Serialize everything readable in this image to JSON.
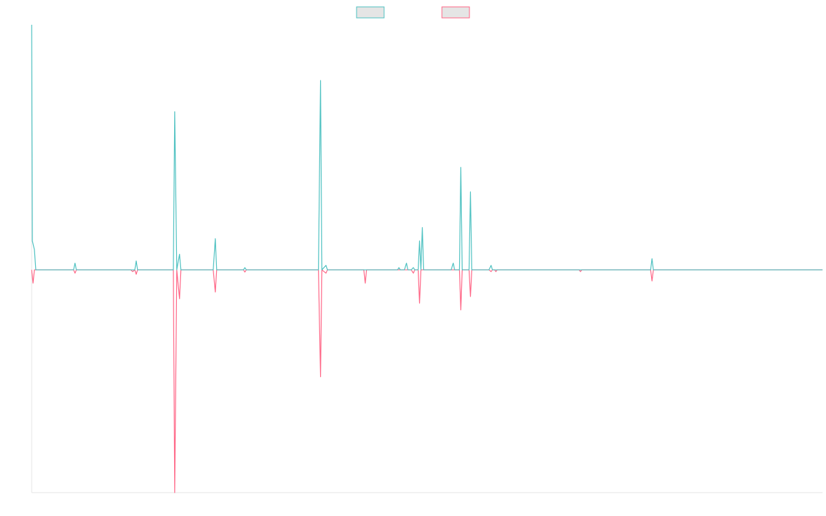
{
  "colors": {
    "series_1": "#4bc0c0",
    "series_2": "#ff6384",
    "legend_box_fill": "#e5e5e5",
    "axis": "#e5e5e5"
  },
  "legend": {
    "placement": "top-center",
    "show_labels": false
  },
  "chart_data": {
    "type": "line",
    "grid": false,
    "xlim": [
      0,
      1150
    ],
    "ylim": [
      -100,
      110
    ],
    "series": [
      {
        "values": [
          [
            0,
            110
          ],
          [
            1,
            13
          ],
          [
            4,
            9
          ],
          [
            6,
            0
          ],
          [
            22,
            0
          ],
          [
            61,
            0
          ],
          [
            63,
            3
          ],
          [
            65,
            0
          ],
          [
            144,
            0
          ],
          [
            147,
            0
          ],
          [
            150,
            0
          ],
          [
            152,
            4
          ],
          [
            154,
            0
          ],
          [
            206,
            0
          ],
          [
            208,
            71
          ],
          [
            211,
            0
          ],
          [
            215,
            7
          ],
          [
            217,
            0
          ],
          [
            230,
            0
          ],
          [
            246,
            0
          ],
          [
            264,
            0
          ],
          [
            267,
            14
          ],
          [
            269,
            0
          ],
          [
            308,
            0
          ],
          [
            310,
            1
          ],
          [
            312,
            0
          ],
          [
            417,
            0
          ],
          [
            420,
            85
          ],
          [
            422,
            0
          ],
          [
            428,
            2
          ],
          [
            430,
            0
          ],
          [
            532,
            0
          ],
          [
            534,
            1
          ],
          [
            536,
            0
          ],
          [
            542,
            0
          ],
          [
            545,
            3
          ],
          [
            547,
            0
          ],
          [
            552,
            0
          ],
          [
            555,
            1
          ],
          [
            557,
            0
          ],
          [
            562,
            0
          ],
          [
            564,
            13
          ],
          [
            566,
            0
          ],
          [
            568,
            19
          ],
          [
            570,
            0
          ],
          [
            591,
            0
          ],
          [
            610,
            0
          ],
          [
            613,
            3
          ],
          [
            615,
            0
          ],
          [
            622,
            0
          ],
          [
            624,
            46
          ],
          [
            626,
            0
          ],
          [
            632,
            0
          ],
          [
            636,
            0
          ],
          [
            638,
            35
          ],
          [
            640,
            0
          ],
          [
            646,
            0
          ],
          [
            665,
            0
          ],
          [
            668,
            2
          ],
          [
            670,
            0
          ],
          [
            718,
            0
          ],
          [
            720,
            0
          ],
          [
            722,
            0
          ],
          [
            796,
            0
          ],
          [
            900,
            0
          ],
          [
            902,
            5
          ],
          [
            904,
            0
          ],
          [
            1150,
            0
          ]
        ]
      },
      {
        "values": [
          [
            0,
            0
          ],
          [
            2,
            -6
          ],
          [
            4,
            0
          ],
          [
            61,
            0
          ],
          [
            63,
            -1.5
          ],
          [
            65,
            0
          ],
          [
            144,
            0
          ],
          [
            147,
            -0.8
          ],
          [
            150,
            0
          ],
          [
            152,
            -2
          ],
          [
            154,
            0
          ],
          [
            206,
            0
          ],
          [
            208,
            -100
          ],
          [
            211,
            0
          ],
          [
            215,
            -13
          ],
          [
            217,
            0
          ],
          [
            264,
            0
          ],
          [
            267,
            -10
          ],
          [
            269,
            0
          ],
          [
            308,
            0
          ],
          [
            310,
            -1
          ],
          [
            312,
            0
          ],
          [
            417,
            0
          ],
          [
            420,
            -48
          ],
          [
            422,
            0
          ],
          [
            428,
            -1.5
          ],
          [
            430,
            0
          ],
          [
            483,
            0
          ],
          [
            485,
            -6
          ],
          [
            487,
            0
          ],
          [
            552,
            0
          ],
          [
            555,
            -1.5
          ],
          [
            557,
            0
          ],
          [
            562,
            0
          ],
          [
            564,
            -15
          ],
          [
            566,
            0
          ],
          [
            622,
            0
          ],
          [
            624,
            -18
          ],
          [
            626,
            0
          ],
          [
            636,
            0
          ],
          [
            638,
            -12
          ],
          [
            640,
            0
          ],
          [
            665,
            0
          ],
          [
            668,
            -0.8
          ],
          [
            670,
            0
          ],
          [
            673,
            0
          ],
          [
            675,
            -0.8
          ],
          [
            677,
            0
          ],
          [
            796,
            0
          ],
          [
            798,
            -0.8
          ],
          [
            800,
            0
          ],
          [
            900,
            0
          ],
          [
            902,
            -5
          ],
          [
            904,
            0
          ],
          [
            1150,
            0
          ]
        ]
      }
    ]
  }
}
